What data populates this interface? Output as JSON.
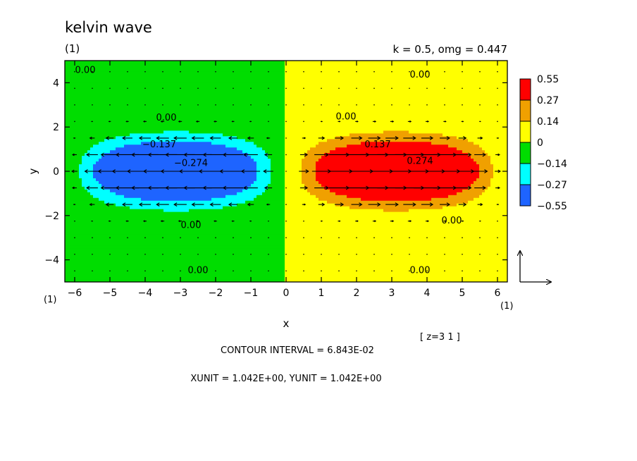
{
  "chart_data": {
    "type": "heatmap",
    "title": "kelvin wave",
    "panel_tag": "(1)",
    "subtitle_right": "k = 0.5, omg = 0.447",
    "xlabel": "x",
    "ylabel": "y",
    "xlim": [
      -6.28,
      6.28
    ],
    "ylim": [
      -5,
      5
    ],
    "x_ticks": [
      -6,
      -5,
      -4,
      -3,
      -2,
      -1,
      0,
      1,
      2,
      3,
      4,
      5,
      6
    ],
    "y_ticks": [
      -4,
      -2,
      0,
      2,
      4
    ],
    "corner_label_left": "(1)",
    "corner_label_right": "(1)",
    "z_label": "[ z=3 1 ]",
    "contour_interval_text": "CONTOUR INTERVAL = 6.843E-02",
    "units_text": "XUNIT = 1.042E+00, YUNIT = 1.042E+00",
    "field": {
      "formula": "A*exp(-y^2/2)*sin(k*x)",
      "amplitude": 0.684,
      "k": 0.5,
      "omega": 0.447
    },
    "color_levels": [
      {
        "lo": 0.27,
        "hi": 0.55,
        "color": "#ff0000"
      },
      {
        "lo": 0.14,
        "hi": 0.27,
        "color": "#f0a000"
      },
      {
        "lo": 0.0,
        "hi": 0.14,
        "color": "#ffff00"
      },
      {
        "lo": -0.14,
        "hi": 0.0,
        "color": "#00dd00"
      },
      {
        "lo": -0.27,
        "hi": -0.14,
        "color": "#00ffff"
      },
      {
        "lo": -0.55,
        "hi": -0.27,
        "color": "#1e64ff"
      }
    ],
    "colorbar_labels": [
      "0.55",
      "0.27",
      "0.14",
      "0",
      "−0.14",
      "−0.27",
      "−0.55"
    ],
    "contour_labels": [
      {
        "text": "0.00",
        "x": -5.7,
        "y": 4.6
      },
      {
        "text": "0.00",
        "x": 3.8,
        "y": 4.4
      },
      {
        "text": "0.00",
        "x": -3.4,
        "y": 2.45
      },
      {
        "text": "0.00",
        "x": 1.7,
        "y": 2.5
      },
      {
        "text": "−0.137",
        "x": -3.6,
        "y": 1.25
      },
      {
        "text": "0.137",
        "x": 2.6,
        "y": 1.25
      },
      {
        "text": "−0.274",
        "x": -2.7,
        "y": 0.4
      },
      {
        "text": "0.274",
        "x": 3.8,
        "y": 0.5
      },
      {
        "text": "0.00",
        "x": -2.7,
        "y": -2.4
      },
      {
        "text": "0.00",
        "x": 4.7,
        "y": -2.2
      },
      {
        "text": "0.00",
        "x": -2.5,
        "y": -4.45
      },
      {
        "text": "0.00",
        "x": 3.8,
        "y": -4.45
      }
    ]
  }
}
